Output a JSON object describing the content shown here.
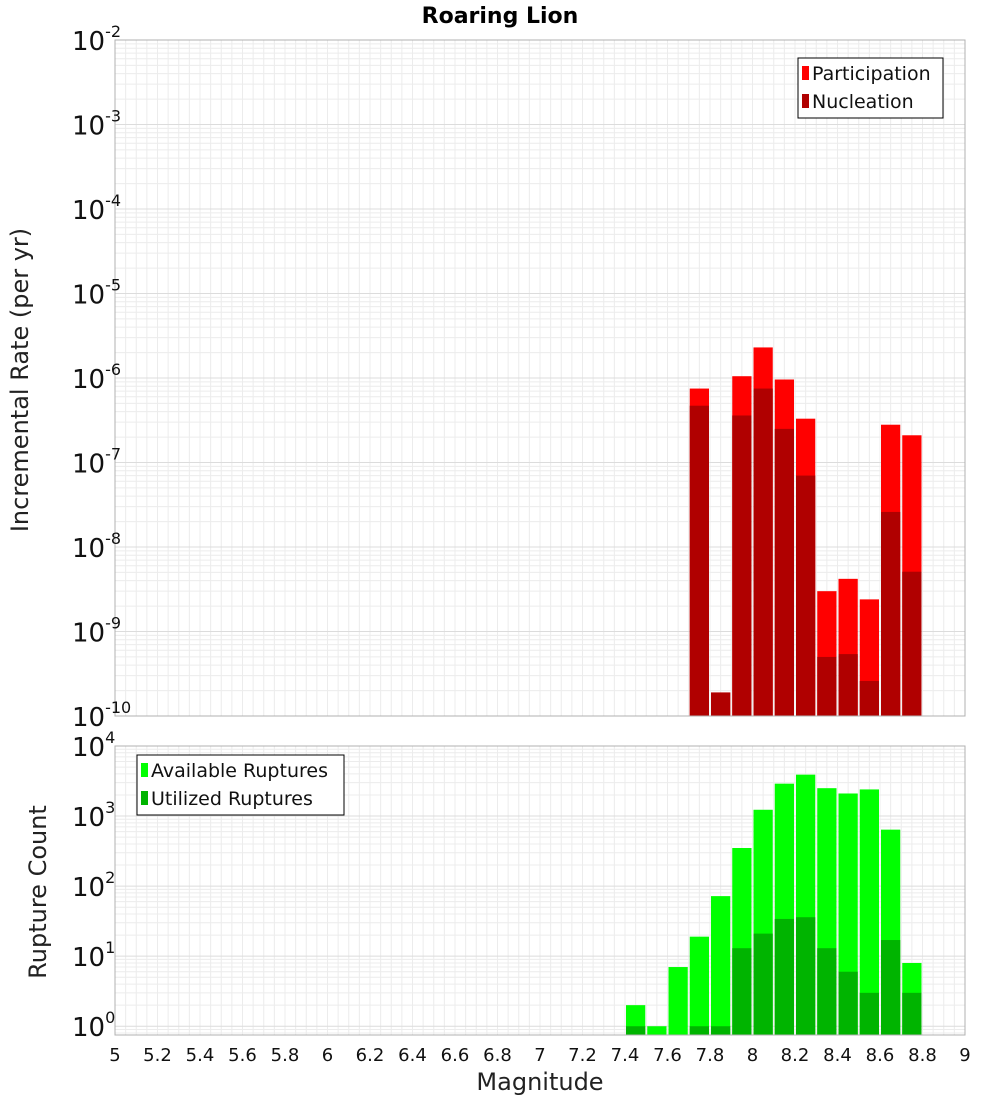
{
  "chart_data": [
    {
      "type": "bar",
      "title": "Roaring Lion",
      "xlabel": "",
      "ylabel": "Incremental Rate (per yr)",
      "yscale": "log",
      "ylim": [
        1e-10,
        0.01
      ],
      "xlim": [
        5,
        9
      ],
      "bin_width": 0.1,
      "x": [
        7.75,
        7.85,
        7.95,
        8.05,
        8.15,
        8.25,
        8.35,
        8.45,
        8.55,
        8.65,
        8.75
      ],
      "series": [
        {
          "name": "Participation",
          "color": "#ff0000",
          "values": [
            7.5e-07,
            1.9e-10,
            1.05e-06,
            2.3e-06,
            9.6e-07,
            3.3e-07,
            3e-09,
            4.2e-09,
            2.4e-09,
            2.8e-07,
            2.1e-07
          ]
        },
        {
          "name": "Nucleation",
          "color": "#b00000",
          "values": [
            4.7e-07,
            1.9e-10,
            3.6e-07,
            7.5e-07,
            2.5e-07,
            7e-08,
            5e-10,
            5.4e-10,
            2.6e-10,
            2.6e-08,
            5.1e-09
          ]
        }
      ],
      "legend_position": "top-right",
      "grid": true
    },
    {
      "type": "bar",
      "title": "",
      "xlabel": "Magnitude",
      "ylabel": "Rupture Count",
      "yscale": "log",
      "ylim": [
        0.75,
        10000
      ],
      "xlim": [
        5,
        9
      ],
      "bin_width": 0.1,
      "x": [
        7.45,
        7.55,
        7.65,
        7.75,
        7.85,
        7.95,
        8.05,
        8.15,
        8.25,
        8.35,
        8.45,
        8.55,
        8.65,
        8.75
      ],
      "series": [
        {
          "name": "Available Ruptures",
          "color": "#00ff00",
          "values": [
            2,
            1,
            7,
            19,
            72,
            350,
            1230,
            2900,
            3900,
            2500,
            2100,
            2400,
            640,
            8
          ]
        },
        {
          "name": "Utilized Ruptures",
          "color": "#00b400",
          "values": [
            1,
            0,
            0,
            1,
            1,
            13,
            21,
            34,
            36,
            13,
            6,
            3,
            17,
            3
          ]
        }
      ],
      "legend_position": "top-left",
      "grid": true
    }
  ],
  "xticks": [
    "5",
    "5.2",
    "5.4",
    "5.6",
    "5.8",
    "6",
    "6.2",
    "6.4",
    "6.6",
    "6.8",
    "7",
    "7.2",
    "7.4",
    "7.6",
    "7.8",
    "8",
    "8.2",
    "8.4",
    "8.6",
    "8.8",
    "9"
  ],
  "top_yticks": [
    {
      "base": "10",
      "exp": "-2"
    },
    {
      "base": "10",
      "exp": "-3"
    },
    {
      "base": "10",
      "exp": "-4"
    },
    {
      "base": "10",
      "exp": "-5"
    },
    {
      "base": "10",
      "exp": "-6"
    },
    {
      "base": "10",
      "exp": "-7"
    },
    {
      "base": "10",
      "exp": "-8"
    },
    {
      "base": "10",
      "exp": "-9"
    },
    {
      "base": "10",
      "exp": "-10"
    }
  ],
  "bottom_yticks": [
    {
      "base": "10",
      "exp": "4"
    },
    {
      "base": "10",
      "exp": "3"
    },
    {
      "base": "10",
      "exp": "2"
    },
    {
      "base": "10",
      "exp": "1"
    },
    {
      "base": "10",
      "exp": "0"
    }
  ]
}
